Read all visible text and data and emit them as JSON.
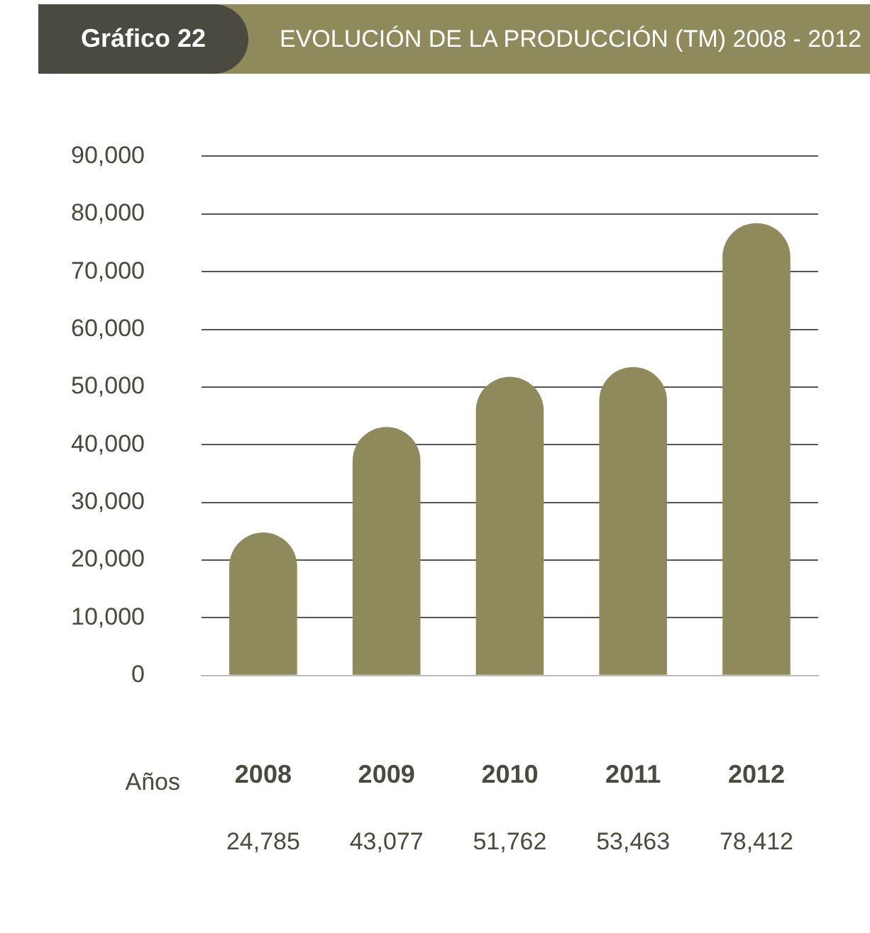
{
  "chart_data": {
    "type": "bar",
    "title": "Gráfico 22",
    "subtitle": "EVOLUCIÓN DE LA PRODUCCIÓN (TM) 2008 - 2012",
    "xlabel": "Años",
    "categories": [
      "2008",
      "2009",
      "2010",
      "2011",
      "2012"
    ],
    "values": [
      24785,
      43077,
      51762,
      53463,
      78412
    ],
    "value_labels": [
      "24,785",
      "43,077",
      "51,762",
      "53,463",
      "78,412"
    ],
    "color": "#8f8a5c",
    "ylim": [
      0,
      90000
    ],
    "yticks": [
      {
        "value": 0,
        "label": "0"
      },
      {
        "value": 10000,
        "label": "10,000"
      },
      {
        "value": 20000,
        "label": "20,000"
      },
      {
        "value": 30000,
        "label": "30,000"
      },
      {
        "value": 40000,
        "label": "40,000"
      },
      {
        "value": 50000,
        "label": "50,000"
      },
      {
        "value": 60000,
        "label": "60,000"
      },
      {
        "value": 70000,
        "label": "70,000"
      },
      {
        "value": 80000,
        "label": "80,000"
      },
      {
        "value": 90000,
        "label": "90,000"
      }
    ],
    "grid": "y"
  }
}
